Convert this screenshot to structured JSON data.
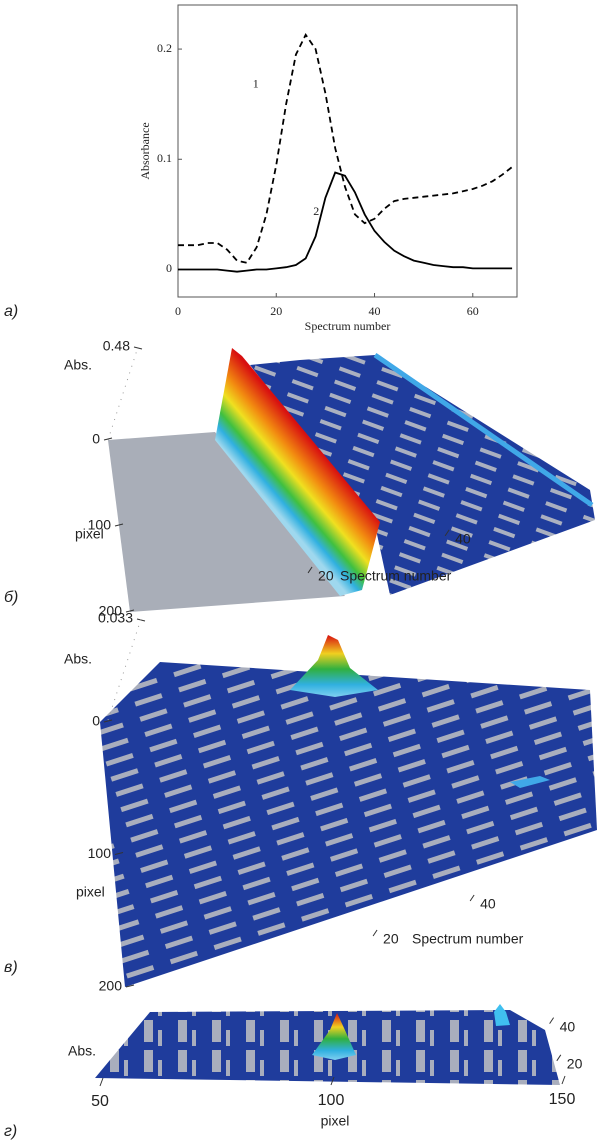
{
  "chart_data": [
    {
      "type": "line",
      "panel_label": "а)",
      "xlabel": "Spectrum number",
      "ylabel": "Absorbance",
      "x": [
        0,
        2,
        4,
        6,
        8,
        10,
        12,
        14,
        16,
        18,
        20,
        22,
        24,
        26,
        28,
        30,
        32,
        34,
        36,
        38,
        40,
        42,
        44,
        46,
        48,
        50,
        52,
        54,
        56,
        58,
        60,
        62,
        64,
        66,
        68
      ],
      "series": [
        {
          "name": "1",
          "color": "#000000",
          "dashed": true,
          "values": [
            0.022,
            0.022,
            0.022,
            0.024,
            0.024,
            0.018,
            0.008,
            0.006,
            0.02,
            0.05,
            0.095,
            0.15,
            0.195,
            0.213,
            0.2,
            0.16,
            0.11,
            0.075,
            0.05,
            0.042,
            0.046,
            0.055,
            0.062,
            0.064,
            0.065,
            0.066,
            0.067,
            0.068,
            0.069,
            0.071,
            0.073,
            0.076,
            0.08,
            0.086,
            0.093
          ]
        },
        {
          "name": "2",
          "color": "#000000",
          "dashed": false,
          "values": [
            0,
            0,
            0,
            0,
            0,
            -0.001,
            -0.002,
            -0.001,
            0,
            0,
            0.001,
            0.002,
            0.004,
            0.01,
            0.03,
            0.065,
            0.088,
            0.085,
            0.07,
            0.05,
            0.035,
            0.025,
            0.017,
            0.012,
            0.008,
            0.006,
            0.004,
            0.003,
            0.002,
            0.002,
            0.001,
            0.001,
            0.001,
            0.001,
            0.001
          ]
        }
      ],
      "xlim": [
        0,
        69
      ],
      "ylim": [
        -0.025,
        0.24
      ],
      "xticks": [
        0,
        20,
        40,
        60
      ],
      "yticks": [
        0,
        0.1,
        0.2
      ]
    },
    {
      "type": "surface",
      "panel_label": "б)",
      "xlabel": "Spectrum number",
      "ylabel": "pixel",
      "zlabel": "Abs.",
      "xlim": [
        0,
        68
      ],
      "ylim": [
        0,
        200
      ],
      "zlim": [
        0,
        0.48
      ],
      "xticks": [
        20,
        40
      ],
      "yticks": [
        0,
        100,
        200
      ],
      "zticks": [
        0.48
      ]
    },
    {
      "type": "surface",
      "panel_label": "в)",
      "xlabel": "Spectrum number",
      "ylabel": "pixel",
      "zlabel": "Abs.",
      "xlim": [
        0,
        68
      ],
      "ylim": [
        0,
        200
      ],
      "zlim": [
        0,
        0.033
      ],
      "xticks": [
        20,
        40
      ],
      "yticks": [
        0,
        100,
        200
      ],
      "zticks": [
        0.033
      ]
    },
    {
      "type": "surface",
      "panel_label": "г)",
      "ylabel": "pixel",
      "zlabel": "Abs.",
      "xlim": [
        0,
        50
      ],
      "ylim": [
        50,
        150
      ],
      "xticks": [
        20,
        40
      ],
      "yticks": [
        50,
        100,
        150
      ]
    }
  ]
}
